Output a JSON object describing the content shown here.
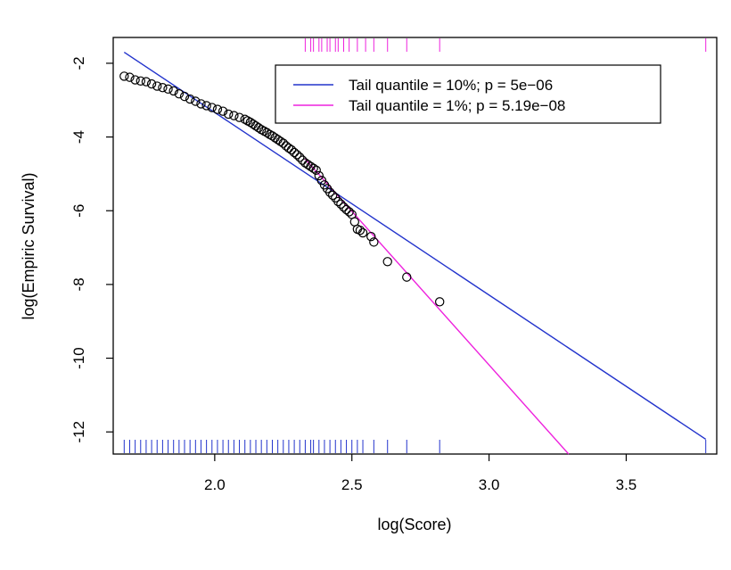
{
  "chart_data": {
    "type": "scatter",
    "xlabel": "log(Score)",
    "ylabel": "log(Empiric Survival)",
    "xlim": [
      1.63,
      3.83
    ],
    "ylim": [
      -12.6,
      -1.3
    ],
    "x_ticks": [
      2.0,
      2.5,
      3.0,
      3.5
    ],
    "x_tick_labels": [
      "2.0",
      "2.5",
      "3.0",
      "3.5"
    ],
    "y_ticks": [
      -2,
      -4,
      -6,
      -8,
      -10,
      -12
    ],
    "y_tick_labels": [
      "-2",
      "-4",
      "-6",
      "-8",
      "-10",
      "-12"
    ],
    "grid": false,
    "legend_position": "top-right",
    "points": {
      "x": [
        1.67,
        1.69,
        1.71,
        1.73,
        1.75,
        1.77,
        1.79,
        1.81,
        1.83,
        1.85,
        1.87,
        1.89,
        1.91,
        1.93,
        1.95,
        1.97,
        1.99,
        2.01,
        2.03,
        2.05,
        2.07,
        2.09,
        2.11,
        2.12,
        2.13,
        2.14,
        2.15,
        2.16,
        2.17,
        2.18,
        2.19,
        2.2,
        2.21,
        2.22,
        2.23,
        2.24,
        2.25,
        2.26,
        2.27,
        2.28,
        2.29,
        2.3,
        2.31,
        2.32,
        2.33,
        2.34,
        2.35,
        2.36,
        2.37,
        2.38,
        2.39,
        2.4,
        2.41,
        2.42,
        2.43,
        2.44,
        2.45,
        2.46,
        2.47,
        2.48,
        2.49,
        2.5,
        2.51,
        2.52,
        2.53,
        2.54,
        2.57,
        2.58,
        2.63,
        2.7,
        2.82
      ],
      "y": [
        -2.35,
        -2.38,
        -2.45,
        -2.48,
        -2.5,
        -2.56,
        -2.62,
        -2.66,
        -2.7,
        -2.75,
        -2.83,
        -2.9,
        -2.97,
        -3.03,
        -3.1,
        -3.15,
        -3.2,
        -3.25,
        -3.3,
        -3.38,
        -3.42,
        -3.47,
        -3.52,
        -3.56,
        -3.6,
        -3.65,
        -3.7,
        -3.75,
        -3.8,
        -3.84,
        -3.88,
        -3.93,
        -3.97,
        -4.02,
        -4.07,
        -4.12,
        -4.17,
        -4.24,
        -4.3,
        -4.35,
        -4.42,
        -4.48,
        -4.55,
        -4.63,
        -4.7,
        -4.75,
        -4.8,
        -4.85,
        -4.9,
        -5.05,
        -5.18,
        -5.3,
        -5.4,
        -5.5,
        -5.58,
        -5.65,
        -5.75,
        -5.82,
        -5.9,
        -5.97,
        -6.03,
        -6.1,
        -6.3,
        -6.5,
        -6.53,
        -6.6,
        -6.7,
        -6.85,
        -7.38,
        -7.8,
        -8.47
      ]
    },
    "series": [
      {
        "name": "Tail quantile = 10%; p = 5e−06",
        "color": "#2233cc",
        "type": "line",
        "x": [
          1.67,
          3.79
        ],
        "y": [
          -1.7,
          -12.2
        ]
      },
      {
        "name": "Tail quantile = 1%; p = 5.19e−08",
        "color": "#ee22dd",
        "type": "line",
        "x": [
          2.33,
          3.29
        ],
        "y": [
          -4.6,
          -12.6
        ]
      }
    ],
    "rug_bottom": {
      "color": "#2233cc",
      "x": [
        1.67,
        1.69,
        1.71,
        1.73,
        1.75,
        1.77,
        1.79,
        1.81,
        1.83,
        1.85,
        1.87,
        1.89,
        1.91,
        1.93,
        1.95,
        1.97,
        1.99,
        2.01,
        2.03,
        2.05,
        2.07,
        2.09,
        2.11,
        2.13,
        2.15,
        2.17,
        2.19,
        2.21,
        2.23,
        2.25,
        2.27,
        2.29,
        2.31,
        2.33,
        2.35,
        2.36,
        2.38,
        2.4,
        2.42,
        2.44,
        2.46,
        2.48,
        2.5,
        2.52,
        2.54,
        2.58,
        2.63,
        2.7,
        2.82,
        3.79
      ]
    },
    "rug_top": {
      "color": "#ee22dd",
      "x": [
        2.33,
        2.35,
        2.36,
        2.38,
        2.39,
        2.41,
        2.42,
        2.44,
        2.45,
        2.47,
        2.49,
        2.52,
        2.55,
        2.58,
        2.63,
        2.7,
        2.82,
        3.79
      ]
    }
  }
}
